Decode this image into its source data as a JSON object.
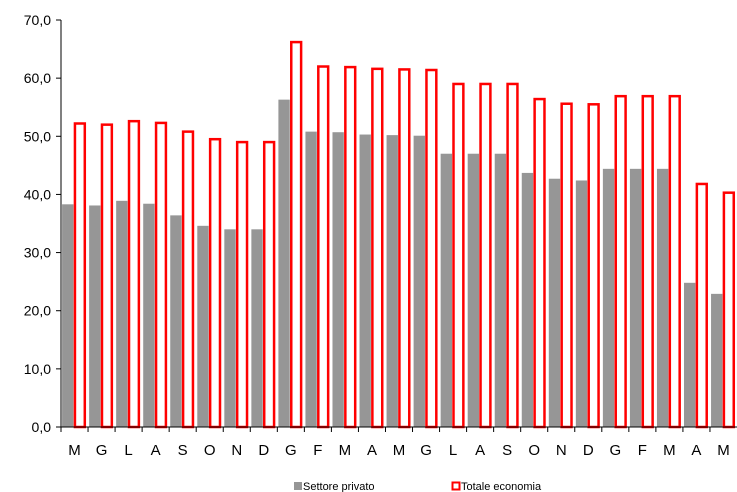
{
  "chart_data": {
    "type": "bar",
    "categories": [
      "M",
      "G",
      "L",
      "A",
      "S",
      "O",
      "N",
      "D",
      "G",
      "F",
      "M",
      "A",
      "M",
      "G",
      "L",
      "A",
      "S",
      "O",
      "N",
      "D",
      "G",
      "F",
      "M",
      "A",
      "M"
    ],
    "series": [
      {
        "name": "Settore privato",
        "color": "#969696",
        "style": "filled",
        "values": [
          38.3,
          38.1,
          38.9,
          38.4,
          36.4,
          34.6,
          34.0,
          34.0,
          56.3,
          50.8,
          50.7,
          50.3,
          50.2,
          50.1,
          47.0,
          47.0,
          47.0,
          43.7,
          42.7,
          42.4,
          44.4,
          44.4,
          44.4,
          24.8,
          22.9
        ]
      },
      {
        "name": "Totale economia",
        "color": "#ff0000",
        "style": "outline",
        "values": [
          52.2,
          52.0,
          52.6,
          52.3,
          50.8,
          49.5,
          49.0,
          49.0,
          66.2,
          62.0,
          61.9,
          61.6,
          61.5,
          61.4,
          59.0,
          59.0,
          59.0,
          56.4,
          55.6,
          55.5,
          56.9,
          56.9,
          56.9,
          41.8,
          40.3
        ]
      }
    ],
    "y_ticks": [
      "0,0",
      "10,0",
      "20,0",
      "30,0",
      "40,0",
      "50,0",
      "60,0",
      "70,0"
    ],
    "ylim": [
      0,
      70
    ],
    "grid": false,
    "legend_position": "bottom"
  }
}
